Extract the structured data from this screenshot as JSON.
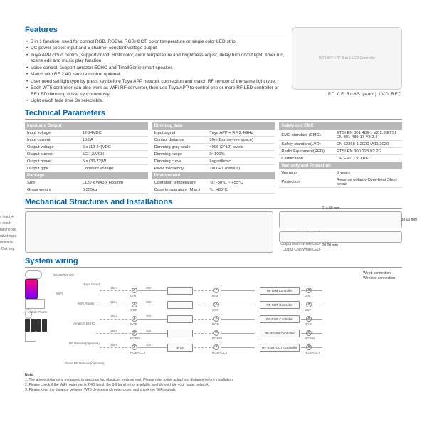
{
  "features": {
    "title": "Features",
    "items": [
      "5 in 1 function, used for control RGB, RGBW, RGB+CCT, color temperature or single color LED strip.",
      "DC power socket input and 5 channel constant voltage output.",
      "Tuya APP cloud control, support on/off, RGB color, color temperature and brightness adjust, delay turn on/off light, timer run, scene edit and music play function.",
      "Voice control, support amazon ECHO and TmallGenie smart speaker.",
      "Match with RF 2.4G remote control optional.",
      "User need set light type by press key before Tuya APP network connection and match RF remote of the same light type.",
      "Each WT5 controller can also work as WiFi-RF converter, then use Tuya APP to control one or more RF LED controller or RF LED dimming driver synchronously.",
      "Light on/off fade time 3s selectable."
    ]
  },
  "cert_text": "FC  CE  RoHS  (emc)  LVD  RED",
  "tech": {
    "title": "Technical Parameters",
    "cols": [
      {
        "groups": [
          {
            "head": "Input and Output",
            "rows": [
              [
                "Input voltage",
                "12-24VDC"
              ],
              [
                "Input current",
                "15.5A"
              ],
              [
                "Output voltage",
                "5 x (12-24)VDC"
              ],
              [
                "Output current",
                "5CH,3A/CH"
              ],
              [
                "Output power",
                "5 x (36-72)W"
              ],
              [
                "Output type",
                "Constant voltage"
              ]
            ]
          },
          {
            "head": "Package",
            "rows": [
              [
                "Size",
                "L120 x W43 x H35mm"
              ],
              [
                "Gross weight",
                "0.055kg"
              ]
            ]
          }
        ]
      },
      {
        "groups": [
          {
            "head": "Dimming data",
            "rows": [
              [
                "Input signal",
                "Tuya APP + RF 2.4GHz"
              ],
              [
                "Control distance",
                "30m(Barrier-free space)"
              ],
              [
                "Dimming gray scale",
                "4096 (2^12) levels"
              ],
              [
                "Dimming range",
                "0~100%"
              ],
              [
                "Dimming curve",
                "Logarithmic"
              ],
              [
                "PWM frequency",
                "1000Hz (default)"
              ]
            ]
          },
          {
            "head": "Environment",
            "rows": [
              [
                "Operation temperature",
                "Ta: -30°C ~ +55°C"
              ],
              [
                "Case temperature (Max.)",
                "Tc: +85°C"
              ]
            ]
          }
        ]
      },
      {
        "groups": [
          {
            "head": "Safety and EMC",
            "rows": [
              [
                "EMC standard (EMC)",
                "ETSI EN 301 489-1 V2.2.3\nETSI EN 301 489-17 V3.2.4"
              ],
              [
                "Safety standard(LVD)",
                "EN 62368-1:2020+A11:2020"
              ],
              [
                "Radio Equipment(RED)",
                "ETSI EN 300 328 V2.2.2"
              ],
              [
                "Certification",
                "CE,EMC,LVD,RED"
              ]
            ]
          },
          {
            "head": "Warranty and Protection",
            "rows": [
              [
                "Warranty",
                "5 years"
              ],
              [
                "Protection",
                "Reverse polarity\nOver-heat\nShort circuit"
              ]
            ]
          }
        ]
      }
    ]
  },
  "mech": {
    "title": "Mechanical Structures and Installations",
    "left_labels": [
      "Power input +",
      "Power input -",
      "Installation rock",
      "DC socket input",
      "LED indicator",
      "Match/Set key"
    ],
    "right_labels": [
      "Output LED +",
      "Output Red LED-",
      "Output Green LED-",
      "Installation rock",
      "Output Blue LED-",
      "Output Warm White LED-",
      "Output Cold White LED-"
    ],
    "dim_w": "114.80 mm",
    "dim_h": "38.00 mm",
    "dim_d": "20.00 mm"
  },
  "wiring": {
    "title": "System wiring",
    "legend": [
      "— Wired connection",
      "--- Wireless connection"
    ],
    "items": {
      "phone": "Mobile Phone",
      "cloud": "Tuya Cloud",
      "cloud_net": "3G/4G/5G\nWiFi",
      "router": "WiFi Router",
      "echo": "Amazon ECHO",
      "remote": "RF Remote(Optional)",
      "panel": "Panel RF Remote(Optional)",
      "wt5": "WT5"
    },
    "signals": [
      "DIM",
      "CCT",
      "RGB",
      "RGBW",
      "RGB+CCT"
    ],
    "ctrls": [
      "RF DIM Controller",
      "RF CCT Controller",
      "RF RGB Controller",
      "RF RGBW Controller",
      "RF RGB+CCT Controller\n(Optional)"
    ],
    "dist": {
      "wifi": "WiFi",
      "d15": "15m",
      "d30": "30m"
    }
  },
  "notes": {
    "head": "Note:",
    "items": [
      "1. The above distance is measured in spacious (no obstacle) environment,  Please refer to the actual test distance before installation.",
      "2. Please check if the WiFi router net is 2.4G band, the 5G band is not available, and do not hide your router network.",
      "3. Please keep the distance between WT5 devices and router close, and check the WiFi signals."
    ]
  },
  "colors": {
    "primary": "#0066b3",
    "th_bg": "#b8b8b8"
  }
}
